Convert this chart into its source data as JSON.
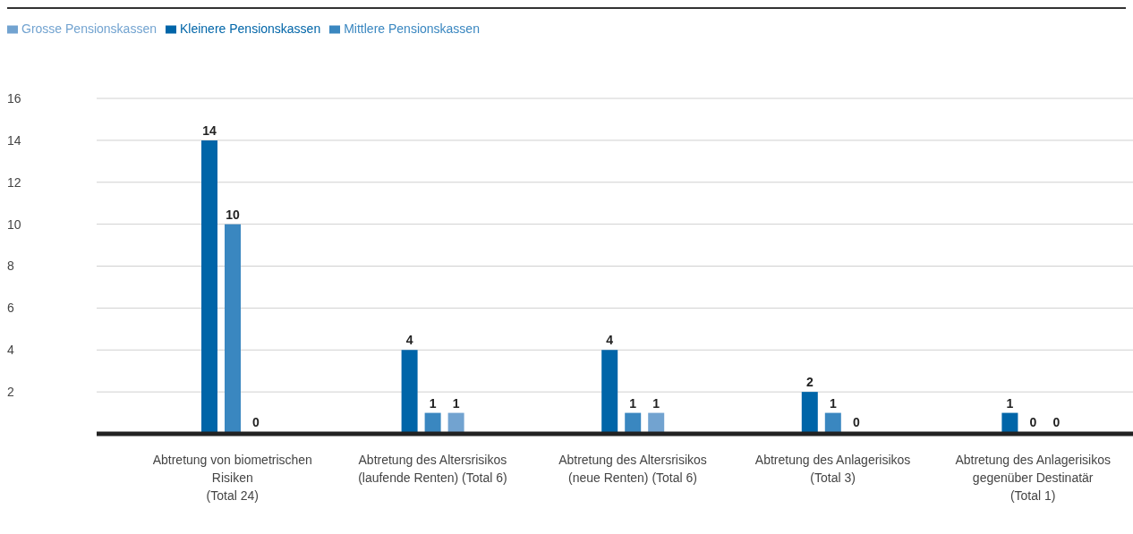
{
  "chart_data": {
    "type": "bar",
    "categories": [
      "Abtretung von biometrischen Risiken (Total 24)",
      "Abtretung des Altersrisikos (laufende Renten) (Total 6)",
      "Abtretung des Altersrisikos (neue Renten) (Total 6)",
      "Abtretung des Anlagerisikos (Total 3)",
      "Abtretung des Anlagerisikos gegenüber Destinatär (Total 1)"
    ],
    "series": [
      {
        "name": "Kleinere Pensionskassen",
        "color": "#0065a8",
        "values": [
          14,
          4,
          4,
          2,
          1
        ]
      },
      {
        "name": "Mittlere Pensionskassen",
        "color": "#3a87c0",
        "values": [
          10,
          1,
          1,
          1,
          0
        ]
      },
      {
        "name": "Grosse Pensionskassen",
        "color": "#72a3d0",
        "values": [
          0,
          1,
          1,
          0,
          0
        ]
      }
    ],
    "ylim": [
      0,
      16
    ],
    "yticks": [
      2,
      4,
      6,
      8,
      10,
      12,
      14,
      16
    ],
    "grid": "y",
    "legend": "top left",
    "data_labels": true
  }
}
